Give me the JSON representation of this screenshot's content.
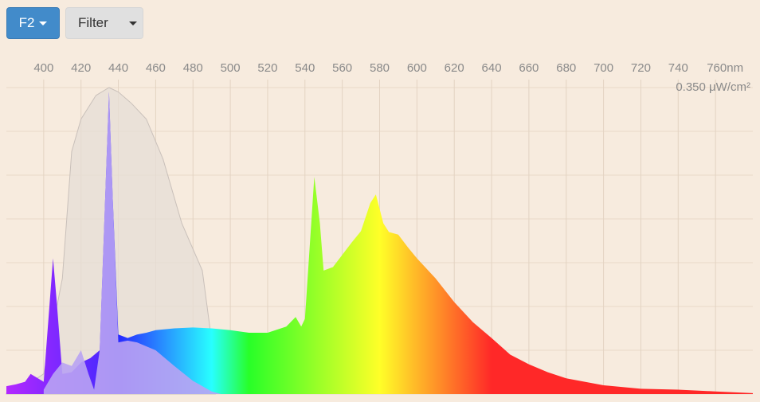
{
  "chart_data": {
    "type": "area",
    "xlim": [
      380,
      780
    ],
    "ylim": [
      0,
      0.35
    ],
    "xticks": [
      400,
      420,
      440,
      460,
      480,
      500,
      520,
      540,
      560,
      580,
      600,
      620,
      640,
      660,
      680,
      700,
      720,
      740,
      {
        "value": 760,
        "label": "760nm"
      }
    ],
    "yticks": [
      {
        "value": 0.35,
        "label": "0.350 μW/cm²"
      }
    ],
    "ygrid": [
      0,
      0.05,
      0.1,
      0.15,
      0.2,
      0.25,
      0.3,
      0.35
    ],
    "grid": true,
    "series": [
      {
        "name": "F2",
        "color": "spectrum",
        "x": [
          380,
          385,
          390,
          393,
          400,
          405,
          407,
          410,
          415,
          420,
          425,
          430,
          435,
          437,
          440,
          445,
          450,
          455,
          460,
          470,
          480,
          490,
          500,
          510,
          520,
          530,
          535,
          538,
          540,
          545,
          548,
          550,
          555,
          560,
          565,
          570,
          575,
          578,
          582,
          585,
          590,
          595,
          600,
          610,
          620,
          630,
          640,
          650,
          660,
          670,
          680,
          690,
          700,
          720,
          740,
          760,
          780
        ],
        "values": [
          0.009,
          0.011,
          0.014,
          0.023,
          0.014,
          0.155,
          0.105,
          0.023,
          0.025,
          0.036,
          0.041,
          0.05,
          0.345,
          0.223,
          0.068,
          0.064,
          0.068,
          0.07,
          0.073,
          0.075,
          0.076,
          0.075,
          0.073,
          0.07,
          0.07,
          0.077,
          0.088,
          0.077,
          0.086,
          0.248,
          0.195,
          0.141,
          0.145,
          0.159,
          0.173,
          0.186,
          0.218,
          0.228,
          0.195,
          0.185,
          0.182,
          0.168,
          0.155,
          0.132,
          0.105,
          0.082,
          0.064,
          0.045,
          0.034,
          0.025,
          0.018,
          0.014,
          0.01,
          0.006,
          0.005,
          0.003,
          0.001
        ]
      },
      {
        "name": "Filter",
        "color": "#e6ddd6",
        "x": [
          380,
          390,
          400,
          410,
          415,
          420,
          428,
          435,
          440,
          447,
          455,
          464,
          474,
          485,
          489,
          492
        ],
        "values": [
          0.001,
          0.009,
          0.023,
          0.132,
          0.277,
          0.314,
          0.341,
          0.35,
          0.345,
          0.332,
          0.314,
          0.268,
          0.195,
          0.141,
          0.077,
          0
        ]
      },
      {
        "color": "#b9a3f3",
        "x": [
          400,
          405,
          410,
          415,
          420,
          424,
          427,
          430,
          435,
          437,
          440,
          445,
          450,
          460,
          470,
          480,
          490,
          495
        ],
        "values": [
          0.005,
          0.023,
          0.036,
          0.032,
          0.05,
          0.023,
          0.005,
          0.05,
          0.345,
          0.223,
          0.059,
          0.061,
          0.059,
          0.05,
          0.032,
          0.015,
          0.003,
          0
        ]
      }
    ]
  }
}
